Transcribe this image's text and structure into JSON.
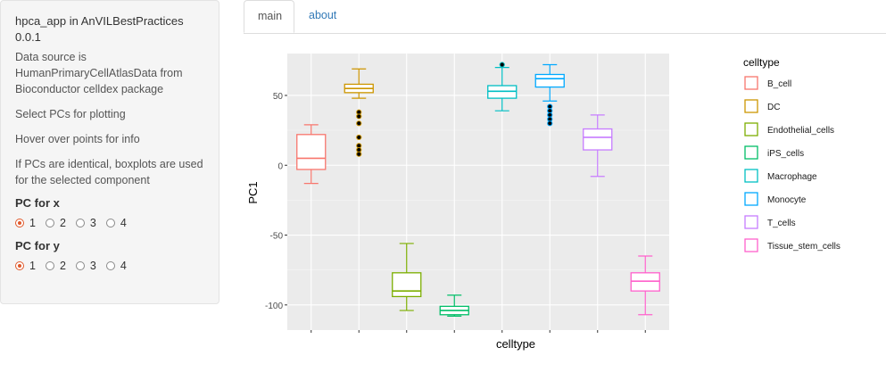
{
  "sidebar": {
    "title_line1": "hpca_app in AnVILBestPractices",
    "title_line2": "0.0.1",
    "source_line1": "Data source is",
    "source_line2": "HumanPrimaryCellAtlasData from",
    "source_line3": "Bioconductor celldex package",
    "select_text": "Select PCs for plotting",
    "hover_text": "Hover over points for info",
    "identical_line1": "If PCs are identical, boxplots are used",
    "identical_line2": "for the selected component",
    "pc_x": {
      "label": "PC for x",
      "options": [
        "1",
        "2",
        "3",
        "4"
      ],
      "selected": "1"
    },
    "pc_y": {
      "label": "PC for y",
      "options": [
        "1",
        "2",
        "3",
        "4"
      ],
      "selected": "1"
    }
  },
  "tabs": {
    "main": "main",
    "about": "about"
  },
  "chart_data": {
    "type": "boxplot",
    "xlabel": "celltype",
    "ylabel": "PC1",
    "yticks": [
      50,
      0,
      -50,
      -100
    ],
    "ylim": [
      -118,
      80
    ],
    "grid": true,
    "legend": {
      "title": "celltype",
      "position": "right"
    },
    "series": [
      {
        "name": "B_cell",
        "color": "#F8766D",
        "min": -13,
        "q1": -3,
        "median": 5,
        "q3": 22,
        "max": 29,
        "outliers": []
      },
      {
        "name": "DC",
        "color": "#CD9600",
        "min": 48,
        "q1": 52,
        "median": 55,
        "q3": 58,
        "max": 69,
        "outliers": [
          38,
          35,
          30,
          20,
          14,
          11,
          8
        ]
      },
      {
        "name": "Endothelial_cells",
        "color": "#7CAE00",
        "min": -104,
        "q1": -94,
        "median": -90,
        "q3": -77,
        "max": -56,
        "outliers": []
      },
      {
        "name": "iPS_cells",
        "color": "#00BE67",
        "min": -108,
        "q1": -107,
        "median": -104,
        "q3": -101,
        "max": -93,
        "outliers": []
      },
      {
        "name": "Macrophage",
        "color": "#00BFC4",
        "min": 39,
        "q1": 48,
        "median": 53,
        "q3": 57,
        "max": 70,
        "outliers": [
          72
        ]
      },
      {
        "name": "Monocyte",
        "color": "#00A9FF",
        "min": 46,
        "q1": 56,
        "median": 62,
        "q3": 65,
        "max": 72,
        "outliers": [
          42,
          39,
          36,
          33,
          30
        ]
      },
      {
        "name": "T_cells",
        "color": "#C77CFF",
        "min": -8,
        "q1": 11,
        "median": 20,
        "q3": 26,
        "max": 36,
        "outliers": []
      },
      {
        "name": "Tissue_stem_cells",
        "color": "#FF61CC",
        "min": -107,
        "q1": -90,
        "median": -83,
        "q3": -77,
        "max": -65,
        "outliers": []
      }
    ]
  }
}
